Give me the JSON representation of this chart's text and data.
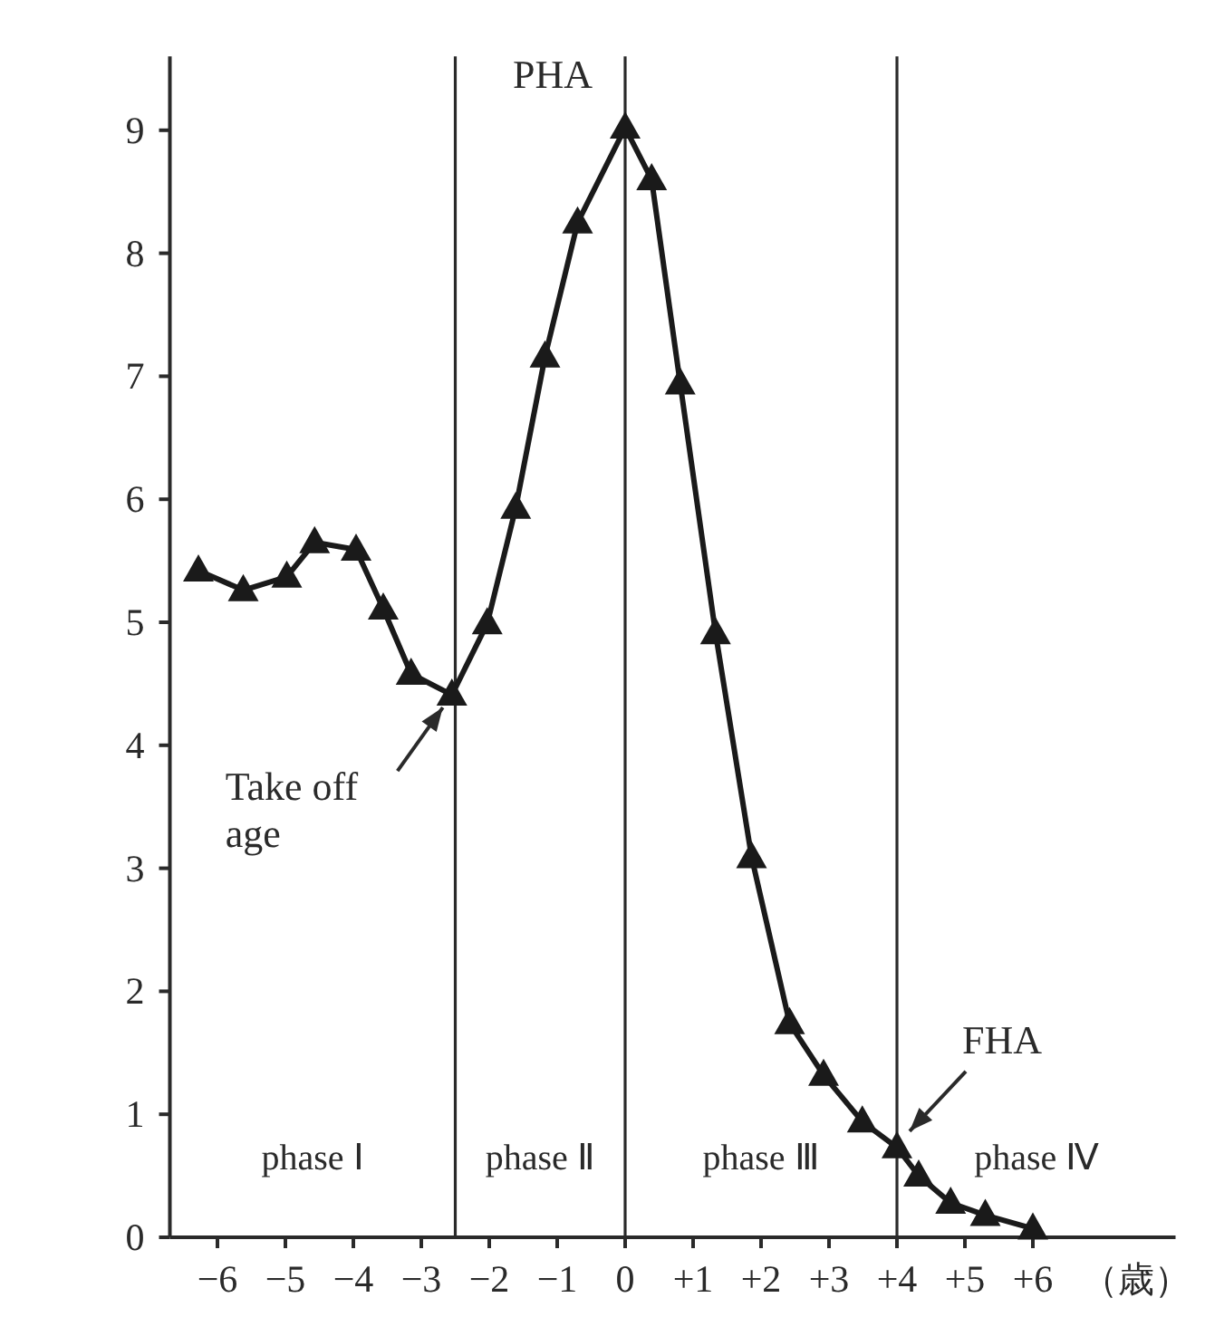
{
  "chart_data": {
    "type": "line",
    "xlabel": "（歳）",
    "x": [
      -6.28,
      -5.62,
      -4.98,
      -4.57,
      -3.96,
      -3.56,
      -3.15,
      -2.55,
      -2.03,
      -1.61,
      -1.18,
      -0.7,
      0,
      0.39,
      0.81,
      1.33,
      1.86,
      2.42,
      2.92,
      3.49,
      4,
      4.32,
      4.79,
      5.3,
      6.0
    ],
    "values": [
      5.42,
      5.26,
      5.37,
      5.65,
      5.59,
      5.11,
      4.58,
      4.41,
      4.99,
      5.93,
      7.16,
      8.25,
      9.02,
      8.6,
      6.94,
      4.91,
      3.09,
      1.74,
      1.32,
      0.94,
      0.73,
      0.5,
      0.28,
      0.18,
      0.07
    ],
    "color": "#1a1a1a",
    "marker": "triangle",
    "line_style": "solid",
    "xlim": [
      -6.7,
      8.1
    ],
    "ylim": [
      0,
      9.6
    ],
    "xticks": [
      -6,
      -5,
      -4,
      -3,
      -2,
      -1,
      0,
      {
        "value": 1,
        "label": "+1"
      },
      {
        "value": 2,
        "label": "+2"
      },
      {
        "value": 3,
        "label": "+3"
      },
      {
        "value": 4,
        "label": "+4"
      },
      {
        "value": 5,
        "label": "+5"
      },
      {
        "value": 6,
        "label": "+6"
      }
    ],
    "yticks": [
      0,
      1,
      2,
      3,
      4,
      5,
      6,
      7,
      8,
      9
    ],
    "ref_lines": [
      {
        "axis": "x",
        "value": -2.5
      },
      {
        "axis": "x",
        "value": 0
      },
      {
        "axis": "x",
        "value": 4
      }
    ],
    "annotations": [
      {
        "text": "PHA",
        "x": 0,
        "y": 9.02
      },
      {
        "text": "Take off age",
        "x": -2.55,
        "y": 4.41
      },
      {
        "text": "FHA",
        "x": 4,
        "y": 0.73
      },
      "phase Ⅰ",
      "phase Ⅱ",
      "phase Ⅲ",
      "phase Ⅳ"
    ]
  }
}
